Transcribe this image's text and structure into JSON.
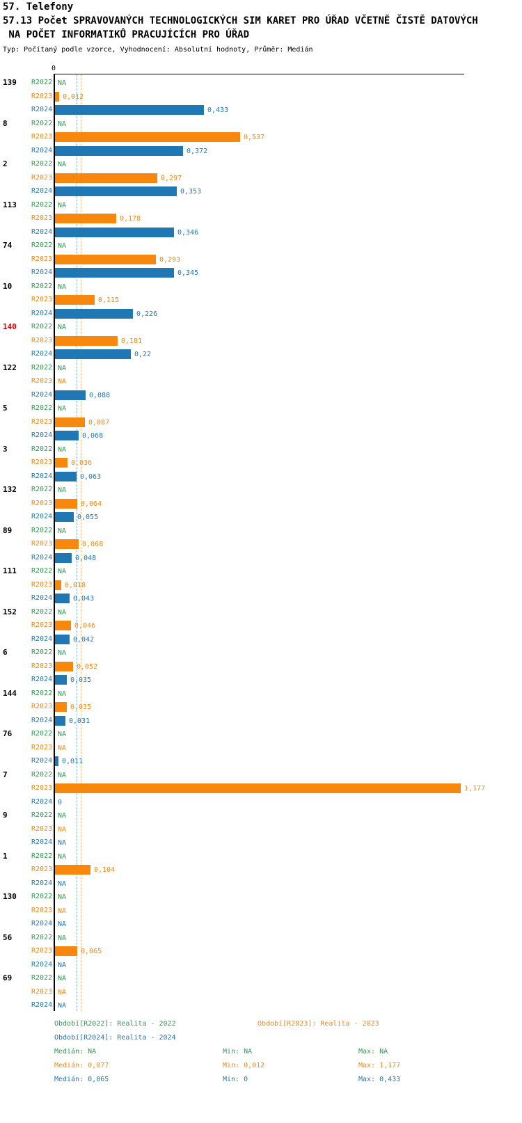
{
  "header": {
    "title": "57. Telefony",
    "subtitle_lines": [
      "57.13 Počet SPRAVOVANÝCH TECHNOLOGICKÝCH SIM KARET PRO ÚŘAD VČETNĚ ČISTĚ DATOVÝCH",
      " NA POČET INFORMATIKŮ PRACUJÍCÍCH PRO ÚŘAD"
    ],
    "meta": "Typ: Počítaný podle vzorce, Vyhodnocení: Absolutní hodnoty, Průměr: Medián"
  },
  "chart_data": {
    "type": "bar",
    "orientation": "horizontal",
    "x_axis": {
      "zero_label": "0",
      "xlim": [
        0,
        1.19
      ]
    },
    "series_labels": [
      "R2022",
      "R2023",
      "R2024"
    ],
    "colors": {
      "R2022": "#2e9b4f",
      "R2023": "#f8870e",
      "R2024": "#1f77b4"
    },
    "highlight_color": "#e00000",
    "medians": {
      "R2023": 0.077,
      "R2024": 0.065
    },
    "groups": [
      {
        "id": "139",
        "highlight": false,
        "rows": [
          {
            "series": "R2022",
            "value": null,
            "label": "NA"
          },
          {
            "series": "R2023",
            "value": 0.012,
            "label": "0,012"
          },
          {
            "series": "R2024",
            "value": 0.433,
            "label": "0,433"
          }
        ]
      },
      {
        "id": "8",
        "highlight": false,
        "rows": [
          {
            "series": "R2022",
            "value": null,
            "label": "NA"
          },
          {
            "series": "R2023",
            "value": 0.537,
            "label": "0,537"
          },
          {
            "series": "R2024",
            "value": 0.372,
            "label": "0,372"
          }
        ]
      },
      {
        "id": "2",
        "highlight": false,
        "rows": [
          {
            "series": "R2022",
            "value": null,
            "label": "NA"
          },
          {
            "series": "R2023",
            "value": 0.297,
            "label": "0,297"
          },
          {
            "series": "R2024",
            "value": 0.353,
            "label": "0,353"
          }
        ]
      },
      {
        "id": "113",
        "highlight": false,
        "rows": [
          {
            "series": "R2022",
            "value": null,
            "label": "NA"
          },
          {
            "series": "R2023",
            "value": 0.178,
            "label": "0,178"
          },
          {
            "series": "R2024",
            "value": 0.346,
            "label": "0,346"
          }
        ]
      },
      {
        "id": "74",
        "highlight": false,
        "rows": [
          {
            "series": "R2022",
            "value": null,
            "label": "NA"
          },
          {
            "series": "R2023",
            "value": 0.293,
            "label": "0,293"
          },
          {
            "series": "R2024",
            "value": 0.345,
            "label": "0,345"
          }
        ]
      },
      {
        "id": "10",
        "highlight": false,
        "rows": [
          {
            "series": "R2022",
            "value": null,
            "label": "NA"
          },
          {
            "series": "R2023",
            "value": 0.115,
            "label": "0,115"
          },
          {
            "series": "R2024",
            "value": 0.226,
            "label": "0,226"
          }
        ]
      },
      {
        "id": "140",
        "highlight": true,
        "rows": [
          {
            "series": "R2022",
            "value": null,
            "label": "NA"
          },
          {
            "series": "R2023",
            "value": 0.181,
            "label": "0,181"
          },
          {
            "series": "R2024",
            "value": 0.22,
            "label": "0,22"
          }
        ]
      },
      {
        "id": "122",
        "highlight": false,
        "rows": [
          {
            "series": "R2022",
            "value": null,
            "label": "NA"
          },
          {
            "series": "R2023",
            "value": null,
            "label": "NA"
          },
          {
            "series": "R2024",
            "value": 0.088,
            "label": "0,088"
          }
        ]
      },
      {
        "id": "5",
        "highlight": false,
        "rows": [
          {
            "series": "R2022",
            "value": null,
            "label": "NA"
          },
          {
            "series": "R2023",
            "value": 0.087,
            "label": "0,087"
          },
          {
            "series": "R2024",
            "value": 0.068,
            "label": "0,068"
          }
        ]
      },
      {
        "id": "3",
        "highlight": false,
        "rows": [
          {
            "series": "R2022",
            "value": null,
            "label": "NA"
          },
          {
            "series": "R2023",
            "value": 0.036,
            "label": "0,036"
          },
          {
            "series": "R2024",
            "value": 0.063,
            "label": "0,063"
          }
        ]
      },
      {
        "id": "132",
        "highlight": false,
        "rows": [
          {
            "series": "R2022",
            "value": null,
            "label": "NA"
          },
          {
            "series": "R2023",
            "value": 0.064,
            "label": "0,064"
          },
          {
            "series": "R2024",
            "value": 0.055,
            "label": "0,055"
          }
        ]
      },
      {
        "id": "89",
        "highlight": false,
        "rows": [
          {
            "series": "R2022",
            "value": null,
            "label": "NA"
          },
          {
            "series": "R2023",
            "value": 0.068,
            "label": "0,068"
          },
          {
            "series": "R2024",
            "value": 0.048,
            "label": "0,048"
          }
        ]
      },
      {
        "id": "111",
        "highlight": false,
        "rows": [
          {
            "series": "R2022",
            "value": null,
            "label": "NA"
          },
          {
            "series": "R2023",
            "value": 0.018,
            "label": "0,018"
          },
          {
            "series": "R2024",
            "value": 0.043,
            "label": "0,043"
          }
        ]
      },
      {
        "id": "152",
        "highlight": false,
        "rows": [
          {
            "series": "R2022",
            "value": null,
            "label": "NA"
          },
          {
            "series": "R2023",
            "value": 0.046,
            "label": "0,046"
          },
          {
            "series": "R2024",
            "value": 0.042,
            "label": "0,042"
          }
        ]
      },
      {
        "id": "6",
        "highlight": false,
        "rows": [
          {
            "series": "R2022",
            "value": null,
            "label": "NA"
          },
          {
            "series": "R2023",
            "value": 0.052,
            "label": "0,052"
          },
          {
            "series": "R2024",
            "value": 0.035,
            "label": "0,035"
          }
        ]
      },
      {
        "id": "144",
        "highlight": false,
        "rows": [
          {
            "series": "R2022",
            "value": null,
            "label": "NA"
          },
          {
            "series": "R2023",
            "value": 0.035,
            "label": "0,035"
          },
          {
            "series": "R2024",
            "value": 0.031,
            "label": "0,031"
          }
        ]
      },
      {
        "id": "76",
        "highlight": false,
        "rows": [
          {
            "series": "R2022",
            "value": null,
            "label": "NA"
          },
          {
            "series": "R2023",
            "value": null,
            "label": "NA"
          },
          {
            "series": "R2024",
            "value": 0.011,
            "label": "0,011"
          }
        ]
      },
      {
        "id": "7",
        "highlight": false,
        "rows": [
          {
            "series": "R2022",
            "value": null,
            "label": "NA"
          },
          {
            "series": "R2023",
            "value": 1.177,
            "label": "1,177"
          },
          {
            "series": "R2024",
            "value": 0,
            "label": "0"
          }
        ]
      },
      {
        "id": "9",
        "highlight": false,
        "rows": [
          {
            "series": "R2022",
            "value": null,
            "label": "NA"
          },
          {
            "series": "R2023",
            "value": null,
            "label": "NA"
          },
          {
            "series": "R2024",
            "value": null,
            "label": "NA"
          }
        ]
      },
      {
        "id": "1",
        "highlight": false,
        "rows": [
          {
            "series": "R2022",
            "value": null,
            "label": "NA"
          },
          {
            "series": "R2023",
            "value": 0.104,
            "label": "0,104"
          },
          {
            "series": "R2024",
            "value": null,
            "label": "NA"
          }
        ]
      },
      {
        "id": "130",
        "highlight": false,
        "rows": [
          {
            "series": "R2022",
            "value": null,
            "label": "NA"
          },
          {
            "series": "R2023",
            "value": null,
            "label": "NA"
          },
          {
            "series": "R2024",
            "value": null,
            "label": "NA"
          }
        ]
      },
      {
        "id": "56",
        "highlight": false,
        "rows": [
          {
            "series": "R2022",
            "value": null,
            "label": "NA"
          },
          {
            "series": "R2023",
            "value": 0.065,
            "label": "0,065"
          },
          {
            "series": "R2024",
            "value": null,
            "label": "NA"
          }
        ]
      },
      {
        "id": "69",
        "highlight": false,
        "rows": [
          {
            "series": "R2022",
            "value": null,
            "label": "NA"
          },
          {
            "series": "R2023",
            "value": null,
            "label": "NA"
          },
          {
            "series": "R2024",
            "value": null,
            "label": "NA"
          }
        ]
      }
    ],
    "legend": [
      {
        "series": "R2022",
        "label": "Období[R2022]: Realita - 2022"
      },
      {
        "series": "R2023",
        "label": "Období[R2023]: Realita - 2023"
      },
      {
        "series": "R2024",
        "label": "Období[R2024]: Realita - 2024"
      }
    ],
    "stats": [
      {
        "series": "R2022",
        "median": "Medián: NA",
        "min": "Min: NA",
        "max": "Max: NA"
      },
      {
        "series": "R2023",
        "median": "Medián: 0,077",
        "min": "Min: 0,012",
        "max": "Max: 1,177"
      },
      {
        "series": "R2024",
        "median": "Medián: 0,065",
        "min": "Min: 0",
        "max": "Max: 0,433"
      }
    ]
  }
}
